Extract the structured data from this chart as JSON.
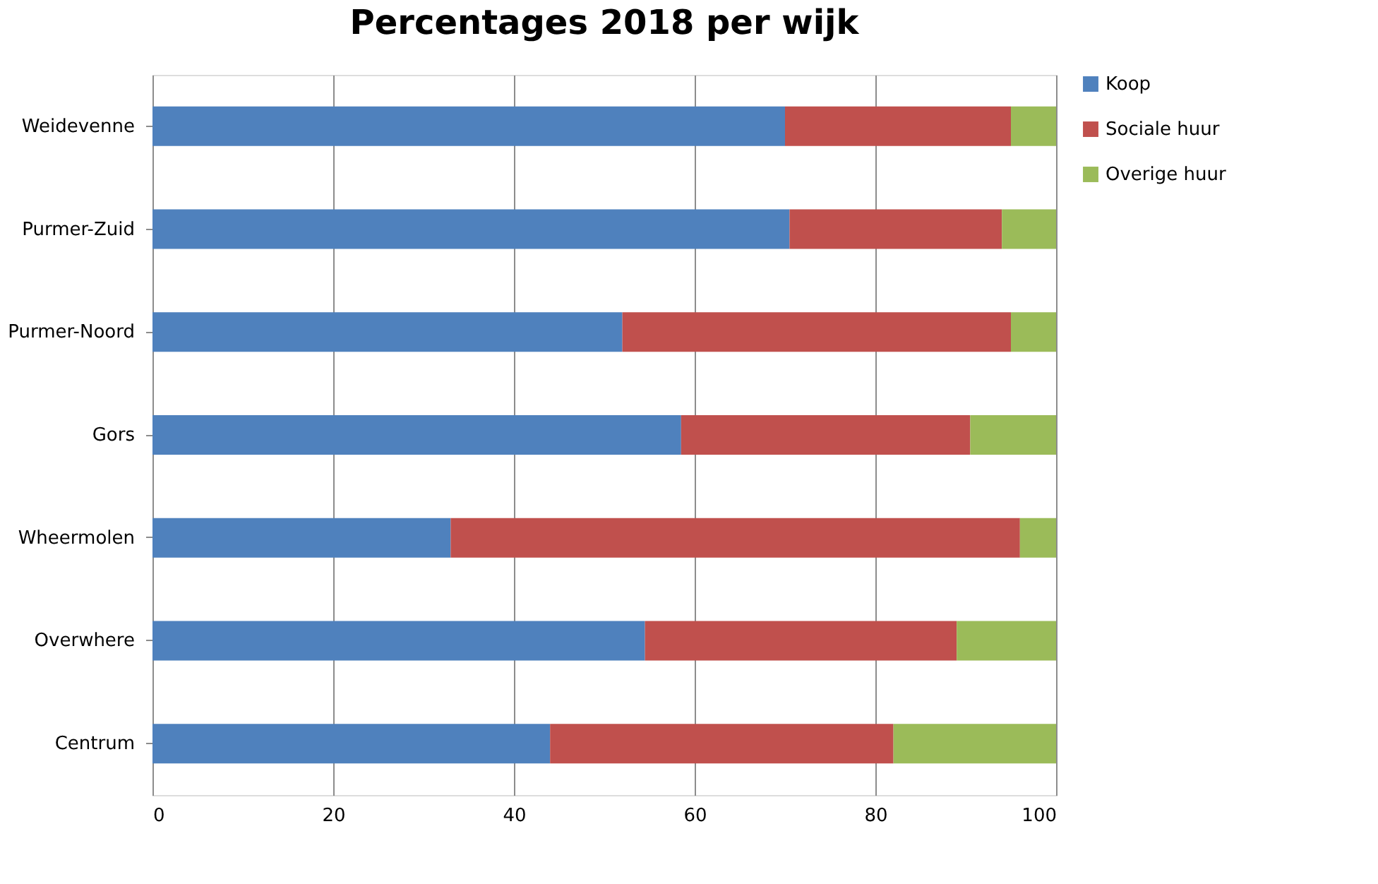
{
  "chart_data": {
    "type": "bar",
    "orientation": "horizontal",
    "stacked": true,
    "title": "Percentages 2018 per wijk",
    "categories": [
      "Weidevenne",
      "Purmer-Zuid",
      "Purmer-Noord",
      "Gors",
      "Wheermolen",
      "Overwhere",
      "Centrum"
    ],
    "series": [
      {
        "name": "Koop",
        "color": "#4f81bd",
        "values": [
          70,
          70.5,
          52,
          58.5,
          33,
          54.5,
          44
        ]
      },
      {
        "name": "Sociale huur",
        "color": "#c0504d",
        "values": [
          25,
          23.5,
          43,
          32,
          63,
          34.5,
          38
        ]
      },
      {
        "name": "Overige huur",
        "color": "#9bbb59",
        "values": [
          5,
          6,
          5,
          9.5,
          4,
          11,
          18
        ]
      }
    ],
    "xlim": [
      0,
      100
    ],
    "xticks": [
      0,
      20,
      40,
      60,
      80,
      100
    ],
    "grid": "x",
    "legend": "right"
  }
}
